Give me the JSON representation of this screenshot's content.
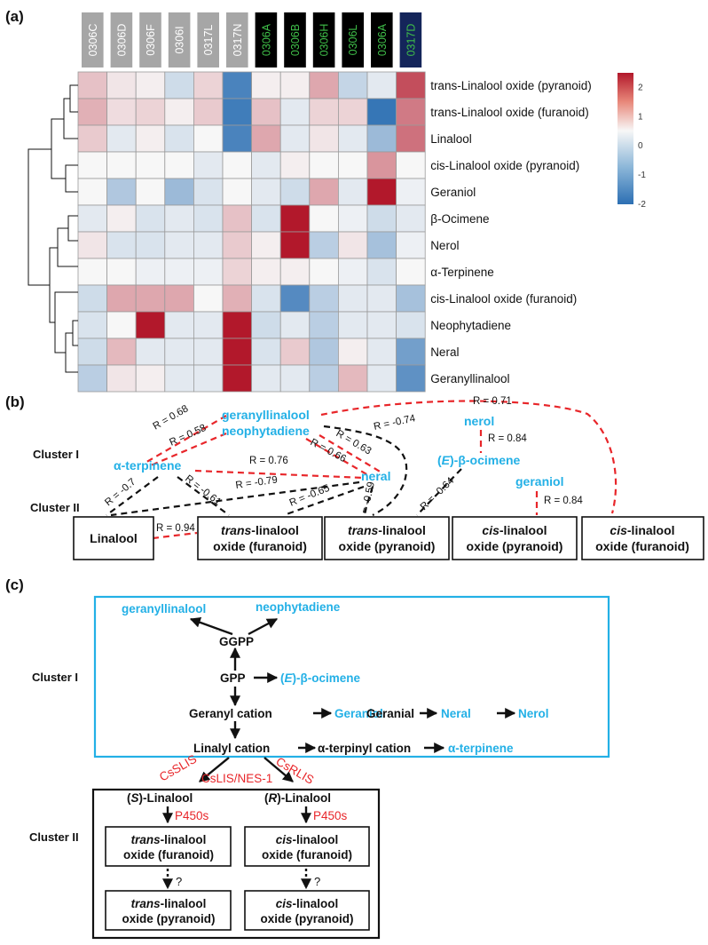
{
  "panel_labels": {
    "a": "(a)",
    "b": "(b)",
    "c": "(c)"
  },
  "colors": {
    "accent_cyan": "#23b0e6",
    "red": "#e8262a",
    "black": "#111111",
    "grey_header": "#a6a6a6",
    "green_text": "#3fbf49",
    "navy": "#14255a",
    "heat_low": "#2c6fb3",
    "heat_mid": "#f7f7f7",
    "heat_high": "#b2182b"
  },
  "chart_data": {
    "type": "heatmap",
    "columns": [
      {
        "label": "0306C",
        "style": "grey"
      },
      {
        "label": "0306D",
        "style": "grey"
      },
      {
        "label": "0306F",
        "style": "grey"
      },
      {
        "label": "0306I",
        "style": "grey"
      },
      {
        "label": "0317L",
        "style": "grey"
      },
      {
        "label": "0317N",
        "style": "grey"
      },
      {
        "label": "0306A",
        "style": "black"
      },
      {
        "label": "0306B",
        "style": "black"
      },
      {
        "label": "0306H",
        "style": "black"
      },
      {
        "label": "0306L",
        "style": "black"
      },
      {
        "label": "0306A",
        "style": "black"
      },
      {
        "label": "0317D",
        "style": "navy"
      }
    ],
    "rows": [
      "trans-Linalool oxide (pyranoid)",
      "trans-Linalool oxide (furanoid)",
      "Linalool",
      "cis-Linalool oxide (pyranoid)",
      "Geraniol",
      "β-Ocimene",
      "Nerol",
      "α-Terpinene",
      "cis-Linalool oxide (furanoid)",
      "Neophytadiene",
      "Neral",
      "Geranyllinalool"
    ],
    "values": [
      [
        0.6,
        0.2,
        0.1,
        -0.4,
        0.4,
        -1.7,
        0.1,
        0.1,
        0.9,
        -0.5,
        -0.2,
        1.9
      ],
      [
        0.8,
        0.3,
        0.4,
        0.1,
        0.5,
        -1.8,
        0.6,
        -0.2,
        0.4,
        0.4,
        -1.9,
        1.4
      ],
      [
        0.5,
        -0.2,
        0.1,
        -0.3,
        0.0,
        -1.7,
        0.9,
        -0.2,
        0.2,
        -0.2,
        -0.9,
        1.5
      ],
      [
        0.0,
        0.0,
        0.0,
        0.0,
        -0.2,
        0.0,
        -0.2,
        0.1,
        0.0,
        0.0,
        1.1,
        0.0
      ],
      [
        0.0,
        -0.7,
        0.0,
        -0.9,
        -0.3,
        0.0,
        -0.2,
        -0.4,
        0.9,
        -0.2,
        2.5,
        -0.1
      ],
      [
        -0.2,
        0.1,
        -0.3,
        -0.2,
        -0.3,
        0.6,
        -0.3,
        2.7,
        0.0,
        -0.1,
        -0.4,
        -0.2
      ],
      [
        0.2,
        -0.3,
        -0.3,
        -0.2,
        -0.2,
        0.5,
        0.1,
        2.8,
        -0.6,
        0.2,
        -0.8,
        -0.1
      ],
      [
        0.0,
        0.0,
        -0.1,
        -0.1,
        -0.1,
        0.4,
        0.1,
        0.1,
        0.0,
        -0.1,
        -0.3,
        0.0
      ],
      [
        -0.4,
        0.9,
        0.9,
        0.9,
        0.0,
        0.8,
        -0.3,
        -1.6,
        -0.6,
        -0.2,
        -0.2,
        -0.8
      ],
      [
        -0.3,
        0.0,
        2.5,
        -0.2,
        -0.2,
        2.5,
        -0.4,
        -0.2,
        -0.6,
        -0.2,
        -0.2,
        -0.3
      ],
      [
        -0.4,
        0.7,
        -0.2,
        -0.2,
        -0.2,
        2.6,
        -0.3,
        0.5,
        -0.7,
        0.1,
        -0.2,
        -1.3
      ],
      [
        -0.6,
        0.2,
        0.1,
        -0.2,
        -0.2,
        2.6,
        -0.2,
        -0.2,
        -0.6,
        0.7,
        -0.2,
        -1.5
      ]
    ],
    "color_range": [
      -2,
      2.5
    ],
    "legend_ticks": [
      "2",
      "1",
      "0",
      "-1",
      "-2"
    ],
    "legend_tick_values": [
      2,
      1,
      0,
      -1,
      -2
    ]
  },
  "cluster_labels": {
    "cluster1": "Cluster I",
    "cluster2": "Cluster II"
  },
  "panel_b": {
    "compounds": {
      "geranyllinalool": "geranyllinalool",
      "neophytadiene": "neophytadiene",
      "a_terpinene": "α-terpinene",
      "neral": "neral",
      "nerol": "nerol",
      "e_ocimene_paren_open": "(",
      "e_ocimene_E": "E",
      "e_ocimene_rest": ")-β-ocimene",
      "geraniol": "geraniol"
    },
    "boxes": {
      "linalool": "Linalool",
      "trans_fur_1_italic": "trans",
      "trans_fur_1_rest": "-linalool",
      "trans_fur_2": "oxide (furanoid)",
      "trans_pyr_1_italic": "trans",
      "trans_pyr_1_rest": "-linalool",
      "trans_pyr_2": "oxide (pyranoid)",
      "cis_pyr_1_italic": "cis",
      "cis_pyr_1_rest": "-linalool",
      "cis_pyr_2": "oxide (pyranoid)",
      "cis_fur_1_italic": "cis",
      "cis_fur_1_rest": "-linalool",
      "cis_fur_2": "oxide (furanoid)"
    },
    "r_labels": {
      "r071": "R = 0.71",
      "r068": "R = 0.68",
      "r058": "R = 0.58",
      "r076": "R = 0.76",
      "r066": "R = 0.66",
      "r063": "R = 0.63",
      "r074": "R = -0.74",
      "r084a": "R = 0.84",
      "r084b": "R = 0.84",
      "r07": "R = -0.7",
      "r061": "R = -0.61",
      "r079": "R = -0.79",
      "r065": "R = -0.65",
      "r059": "R = -0.59",
      "r064": "R = -0.64",
      "r094": "R = 0.94"
    }
  },
  "panel_c": {
    "geranyllinalool": "geranyllinalool",
    "neophytadiene": "neophytadiene",
    "ggpp": "GGPP",
    "gpp": "GPP",
    "e_ocimene_paren_open": "(",
    "e_ocimene_E": "E",
    "e_ocimene_rest": ")-β-ocimene",
    "geranyl_cation": "Geranyl cation",
    "geraniol": "Geraniol",
    "geranial": "Geranial",
    "neral": "Neral",
    "nerol": "Nerol",
    "linalyl_cation": "Linalyl cation",
    "a_terpinyl_cation": "α-terpinyl cation",
    "a_terpinene": "α-terpinene",
    "cssl_is": "CsSLIS",
    "csrl_is": "CsRLIS",
    "cslis_nes": "CsLIS/NES-1",
    "s_paren_open": "(",
    "s_letter": "S",
    "s_rest": ")-Linalool",
    "r_paren_open": "(",
    "r_letter": "R",
    "r_rest": ")-Linalool",
    "p450_left": "P450s",
    "p450_right": "P450s",
    "q_left": "?",
    "q_right": "?",
    "trans_fur_1_italic": "trans",
    "trans_fur_1_rest": "-linalool",
    "trans_fur_2": "oxide (furanoid)",
    "cis_fur_1_italic": "cis",
    "cis_fur_1_rest": "-linalool",
    "cis_fur_2": "oxide (furanoid)",
    "trans_pyr_1_italic": "trans",
    "trans_pyr_1_rest": "-linalool",
    "trans_pyr_2": "oxide (pyranoid)",
    "cis_pyr_1_italic": "cis",
    "cis_pyr_1_rest": "-linalool",
    "cis_pyr_2": "oxide (pyranoid)"
  }
}
